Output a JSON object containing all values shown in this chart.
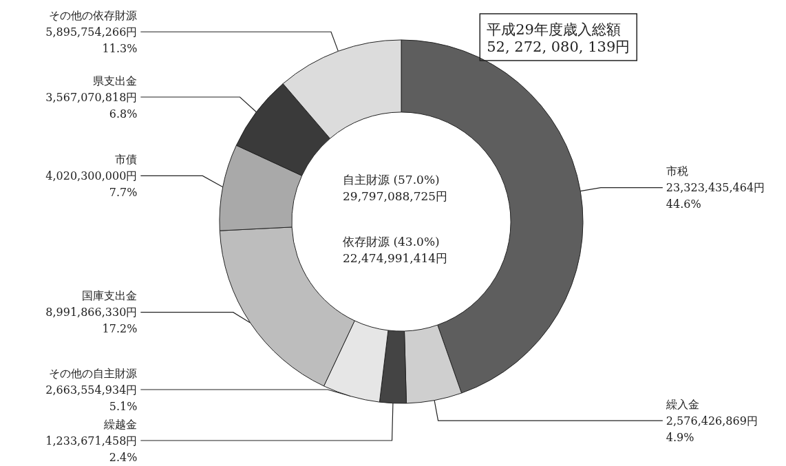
{
  "chart_data": {
    "type": "donut",
    "title": "平成29年度歳入総額",
    "subtitle": "52, 272, 080, 139円",
    "categories": [
      "市税",
      "繰入金",
      "繰越金",
      "その他の自主財源",
      "国庫支出金",
      "市債",
      "県支出金",
      "その他の依存財源"
    ],
    "values": [
      23323435464,
      2576426869,
      1233671458,
      2663554934,
      8991866330,
      4020300000,
      3567070818,
      5895754266
    ],
    "value_labels": [
      "23,323,435,464円\n44.6%",
      "2,576,426,869円\n4.9%",
      "1,233,671,458円\n2.4%",
      "2,663,554,934円\n5.1%",
      "8,991,866,330円\n17.2%",
      "4,020,300,000円\n7.7%",
      "3,567,070,818円\n6.8%",
      "5,895,754,266円\n11.3%"
    ],
    "colors": [
      "#5e5e5e",
      "#cfcfcf",
      "#444444",
      "#e6e6e6",
      "#bdbdbd",
      "#a9a9a9",
      "#3a3a3a",
      "#dcdcdc"
    ],
    "annotations": [
      "自主財源 (57.0%)",
      "29,797,088,725円",
      "依存財源 (43.0%)",
      "22,474,991,414円"
    ],
    "legend": false
  }
}
